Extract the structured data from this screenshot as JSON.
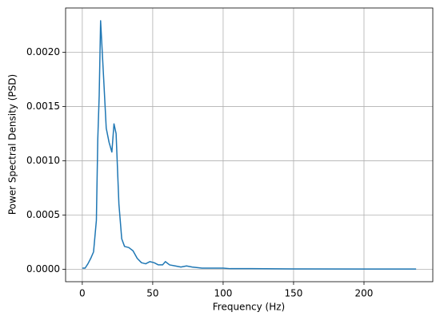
{
  "chart_data": {
    "type": "line",
    "xlabel": "Frequency (Hz)",
    "ylabel": "Power Spectral Density (PSD)",
    "x": [
      0,
      2,
      4,
      6,
      8,
      10,
      11,
      12,
      13,
      15,
      17,
      19,
      21,
      22.5,
      24,
      26,
      28,
      30,
      33,
      36,
      39,
      42,
      45,
      48,
      51,
      54,
      57,
      59,
      62,
      66,
      70,
      74,
      78,
      85,
      95,
      100,
      105,
      120,
      150,
      200,
      237
    ],
    "series": [
      {
        "name": "PSD",
        "color": "#1f77b4",
        "values": [
          1e-05,
          1e-05,
          5e-05,
          0.0001,
          0.00016,
          0.00045,
          0.0012,
          0.0016,
          0.00229,
          0.0018,
          0.0013,
          0.00117,
          0.00108,
          0.00134,
          0.00125,
          0.0006,
          0.00028,
          0.00021,
          0.0002,
          0.00017,
          0.0001,
          6e-05,
          5e-05,
          7e-05,
          6e-05,
          4e-05,
          4e-05,
          7e-05,
          4e-05,
          3e-05,
          2e-05,
          3e-05,
          2e-05,
          1e-05,
          1e-05,
          1e-05,
          5e-06,
          5e-06,
          3e-06,
          2e-06,
          2e-06
        ]
      }
    ],
    "xlim": [
      -11.85,
      248.85
    ],
    "xticks": [
      0,
      50,
      100,
      150,
      200
    ],
    "ylim": [
      -0.000115,
      0.002408
    ],
    "yticks": [
      {
        "value": 0,
        "label": "0.0000"
      },
      {
        "value": 0.0005,
        "label": "0.0005"
      },
      {
        "value": 0.001,
        "label": "0.0010"
      },
      {
        "value": 0.0015,
        "label": "0.0015"
      },
      {
        "value": 0.002,
        "label": "0.0020"
      }
    ],
    "grid": true
  }
}
